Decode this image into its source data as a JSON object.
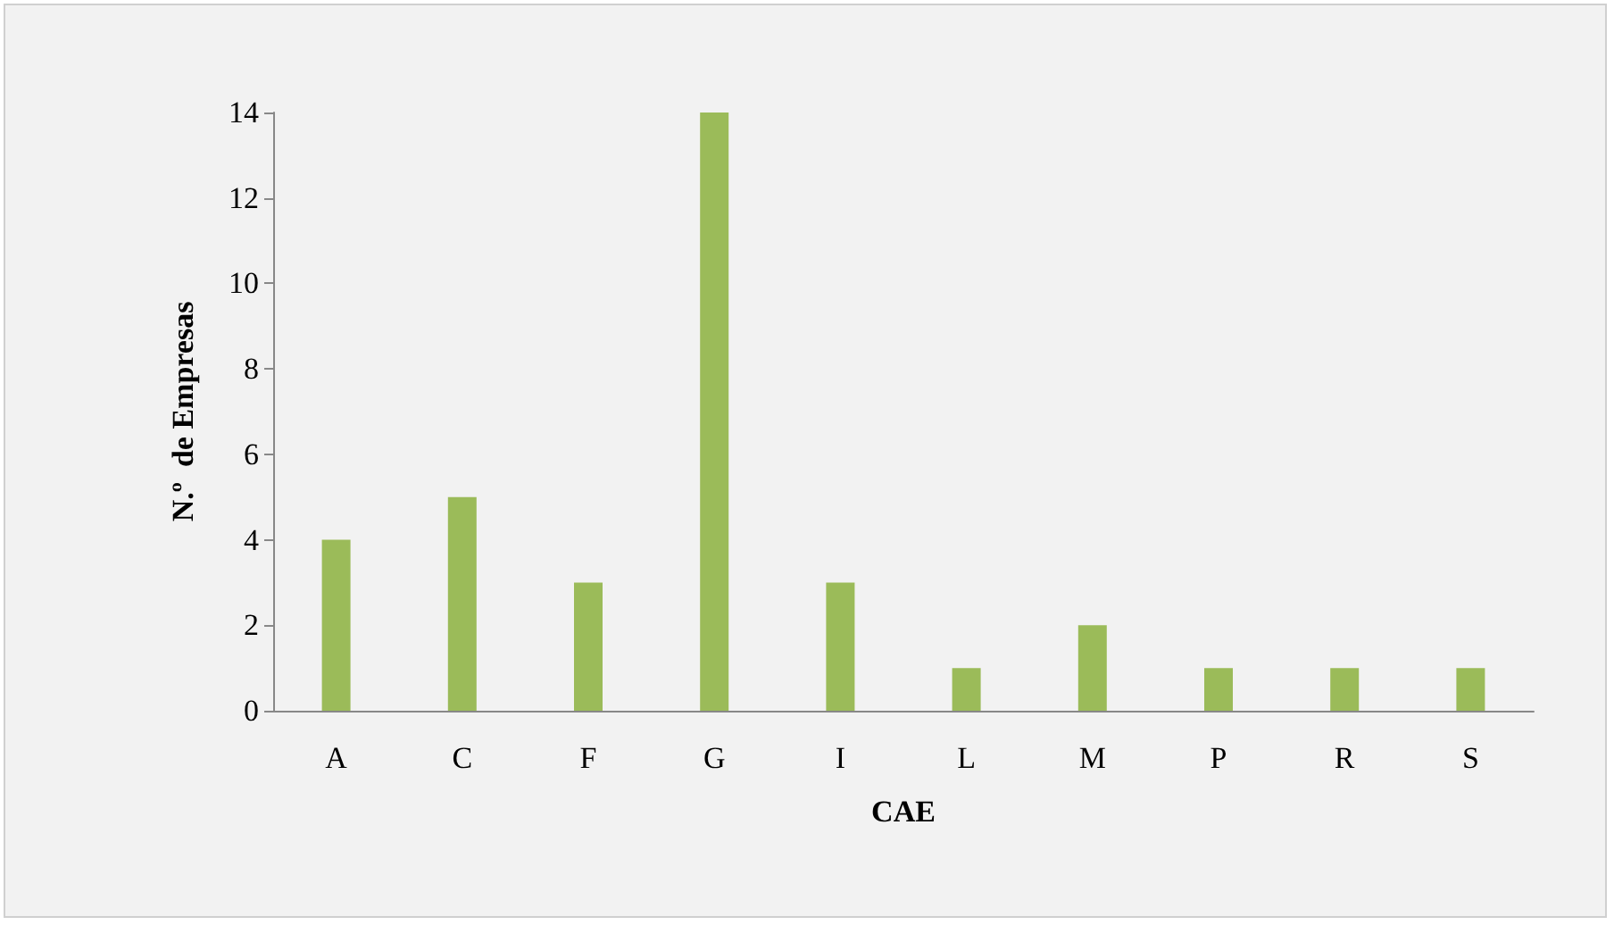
{
  "chart_data": {
    "type": "bar",
    "xlabel": "CAE",
    "ylabel": "N.º  de Empresas",
    "categories": [
      "A",
      "C",
      "F",
      "G",
      "I",
      "L",
      "M",
      "P",
      "R",
      "S"
    ],
    "values": [
      4,
      5,
      3,
      14,
      3,
      1,
      2,
      1,
      1,
      1
    ],
    "color": "#9bbb59",
    "ylim": [
      0,
      14
    ],
    "yticks": [
      0,
      2,
      4,
      6,
      8,
      10,
      12,
      14
    ],
    "grid": false
  }
}
